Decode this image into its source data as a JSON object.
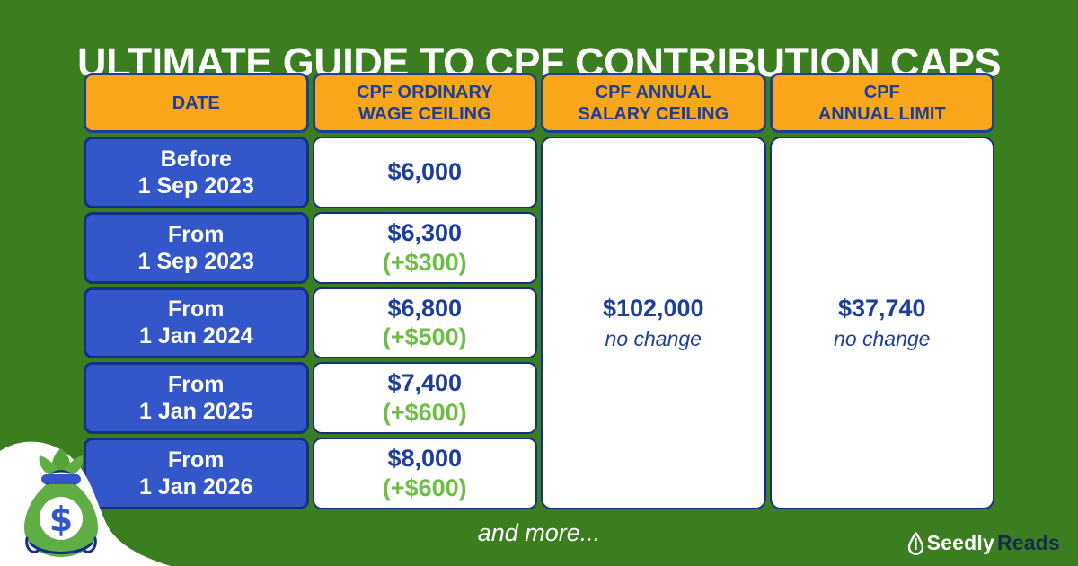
{
  "page": {
    "title": "ULTIMATE GUIDE TO CPF CONTRIBUTION CAPS",
    "footer_note": "and more...",
    "brand": {
      "name_primary": "Seedly",
      "name_secondary": "Reads"
    }
  },
  "table": {
    "columns": [
      {
        "label": "DATE",
        "lines": [
          "DATE"
        ]
      },
      {
        "label": "CPF ORDINARY WAGE CEILING",
        "lines": [
          "CPF ORDINARY",
          "WAGE CEILING"
        ]
      },
      {
        "label": "CPF ANNUAL SALARY CEILING",
        "lines": [
          "CPF ANNUAL",
          "SALARY CEILING"
        ]
      },
      {
        "label": "CPF ANNUAL LIMIT",
        "lines": [
          "CPF",
          "ANNUAL LIMIT"
        ]
      }
    ],
    "rows": [
      {
        "date_lines": [
          "Before",
          "1 Sep 2023"
        ],
        "value": "$6,000",
        "change": null
      },
      {
        "date_lines": [
          "From",
          "1 Sep 2023"
        ],
        "value": "$6,300",
        "change": "(+$300)"
      },
      {
        "date_lines": [
          "From",
          "1 Jan 2024"
        ],
        "value": "$6,800",
        "change": "(+$500)"
      },
      {
        "date_lines": [
          "From",
          "1 Jan 2025"
        ],
        "value": "$7,400",
        "change": "(+$600)"
      },
      {
        "date_lines": [
          "From",
          "1 Jan 2026"
        ],
        "value": "$8,000",
        "change": "(+$600)"
      }
    ],
    "annual_salary_ceiling": {
      "value": "$102,000",
      "note": "no change"
    },
    "annual_limit": {
      "value": "$37,740",
      "note": "no change"
    }
  },
  "chart_data": {
    "type": "table",
    "title": "ULTIMATE GUIDE TO CPF CONTRIBUTION CAPS",
    "columns": [
      "DATE",
      "CPF ORDINARY WAGE CEILING",
      "CPF ANNUAL SALARY CEILING",
      "CPF ANNUAL LIMIT"
    ],
    "rows": [
      [
        "Before 1 Sep 2023",
        "$6,000",
        "$102,000 no change",
        "$37,740 no change"
      ],
      [
        "From 1 Sep 2023",
        "$6,300 (+$300)",
        "",
        ""
      ],
      [
        "From 1 Jan 2024",
        "$6,800 (+$500)",
        "",
        ""
      ],
      [
        "From 1 Jan 2025",
        "$7,400 (+$600)",
        "",
        ""
      ],
      [
        "From 1 Jan 2026",
        "$8,000 (+$600)",
        "",
        ""
      ]
    ],
    "layout_notes": "CPF Annual Salary Ceiling and CPF Annual Limit cells span all five date rows"
  },
  "colors": {
    "background_green": "#3B7E20",
    "header_orange": "#F9A61A",
    "cell_blue": "#3356C9",
    "border_navy": "#132F88",
    "text_navy": "#1D3E99",
    "increase_green": "#6CBE45",
    "logo_navy": "#172B4D",
    "white": "#FFFFFF"
  }
}
